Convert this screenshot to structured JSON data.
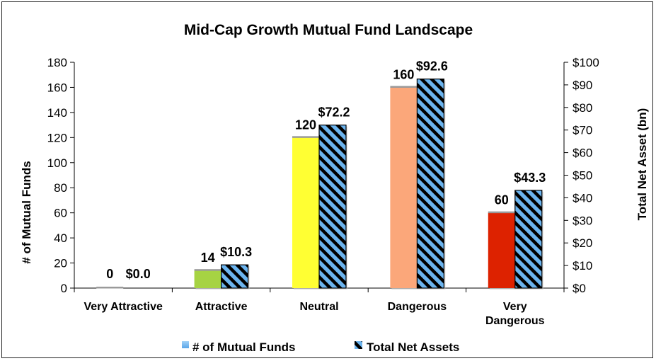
{
  "chart_data": {
    "type": "bar",
    "title": "Mid-Cap Growth Mutual Fund Landscape",
    "categories": [
      "Very Attractive",
      "Attractive",
      "Neutral",
      "Dangerous",
      "Very Dangerous"
    ],
    "category_lines": [
      [
        "Very Attractive"
      ],
      [
        "Attractive"
      ],
      [
        "Neutral"
      ],
      [
        "Dangerous"
      ],
      [
        "Very",
        "Dangerous"
      ]
    ],
    "series": [
      {
        "name": "# of Mutual Funds",
        "axis": "left",
        "values": [
          0,
          14,
          120,
          160,
          60
        ],
        "labels": [
          "0",
          "14",
          "120",
          "160",
          "60"
        ],
        "colors": [
          "#b3b3b3",
          "#a6d343",
          "#ffff33",
          "#fba77a",
          "#dd2200"
        ]
      },
      {
        "name": "Total Net Assets",
        "axis": "right",
        "values": [
          0.0,
          10.3,
          72.2,
          92.6,
          43.3
        ],
        "labels": [
          "$0.0",
          "$10.3",
          "$72.2",
          "$92.6",
          "$43.3"
        ],
        "pattern": "diagonal stripes",
        "colors": [
          "#6cb4ee",
          "#000000"
        ]
      }
    ],
    "ylabel": "# of Mutual Funds",
    "ylim": [
      0,
      180
    ],
    "yticks": [
      "0",
      "20",
      "40",
      "60",
      "80",
      "100",
      "120",
      "140",
      "160",
      "180"
    ],
    "y2label": "Total Net Asset (bn)",
    "y2lim": [
      0,
      100
    ],
    "y2ticks": [
      "$0",
      "$10",
      "$20",
      "$30",
      "$40",
      "$50",
      "$60",
      "$70",
      "$80",
      "$90",
      "$100"
    ],
    "legend_position": "bottom",
    "grid": false
  }
}
